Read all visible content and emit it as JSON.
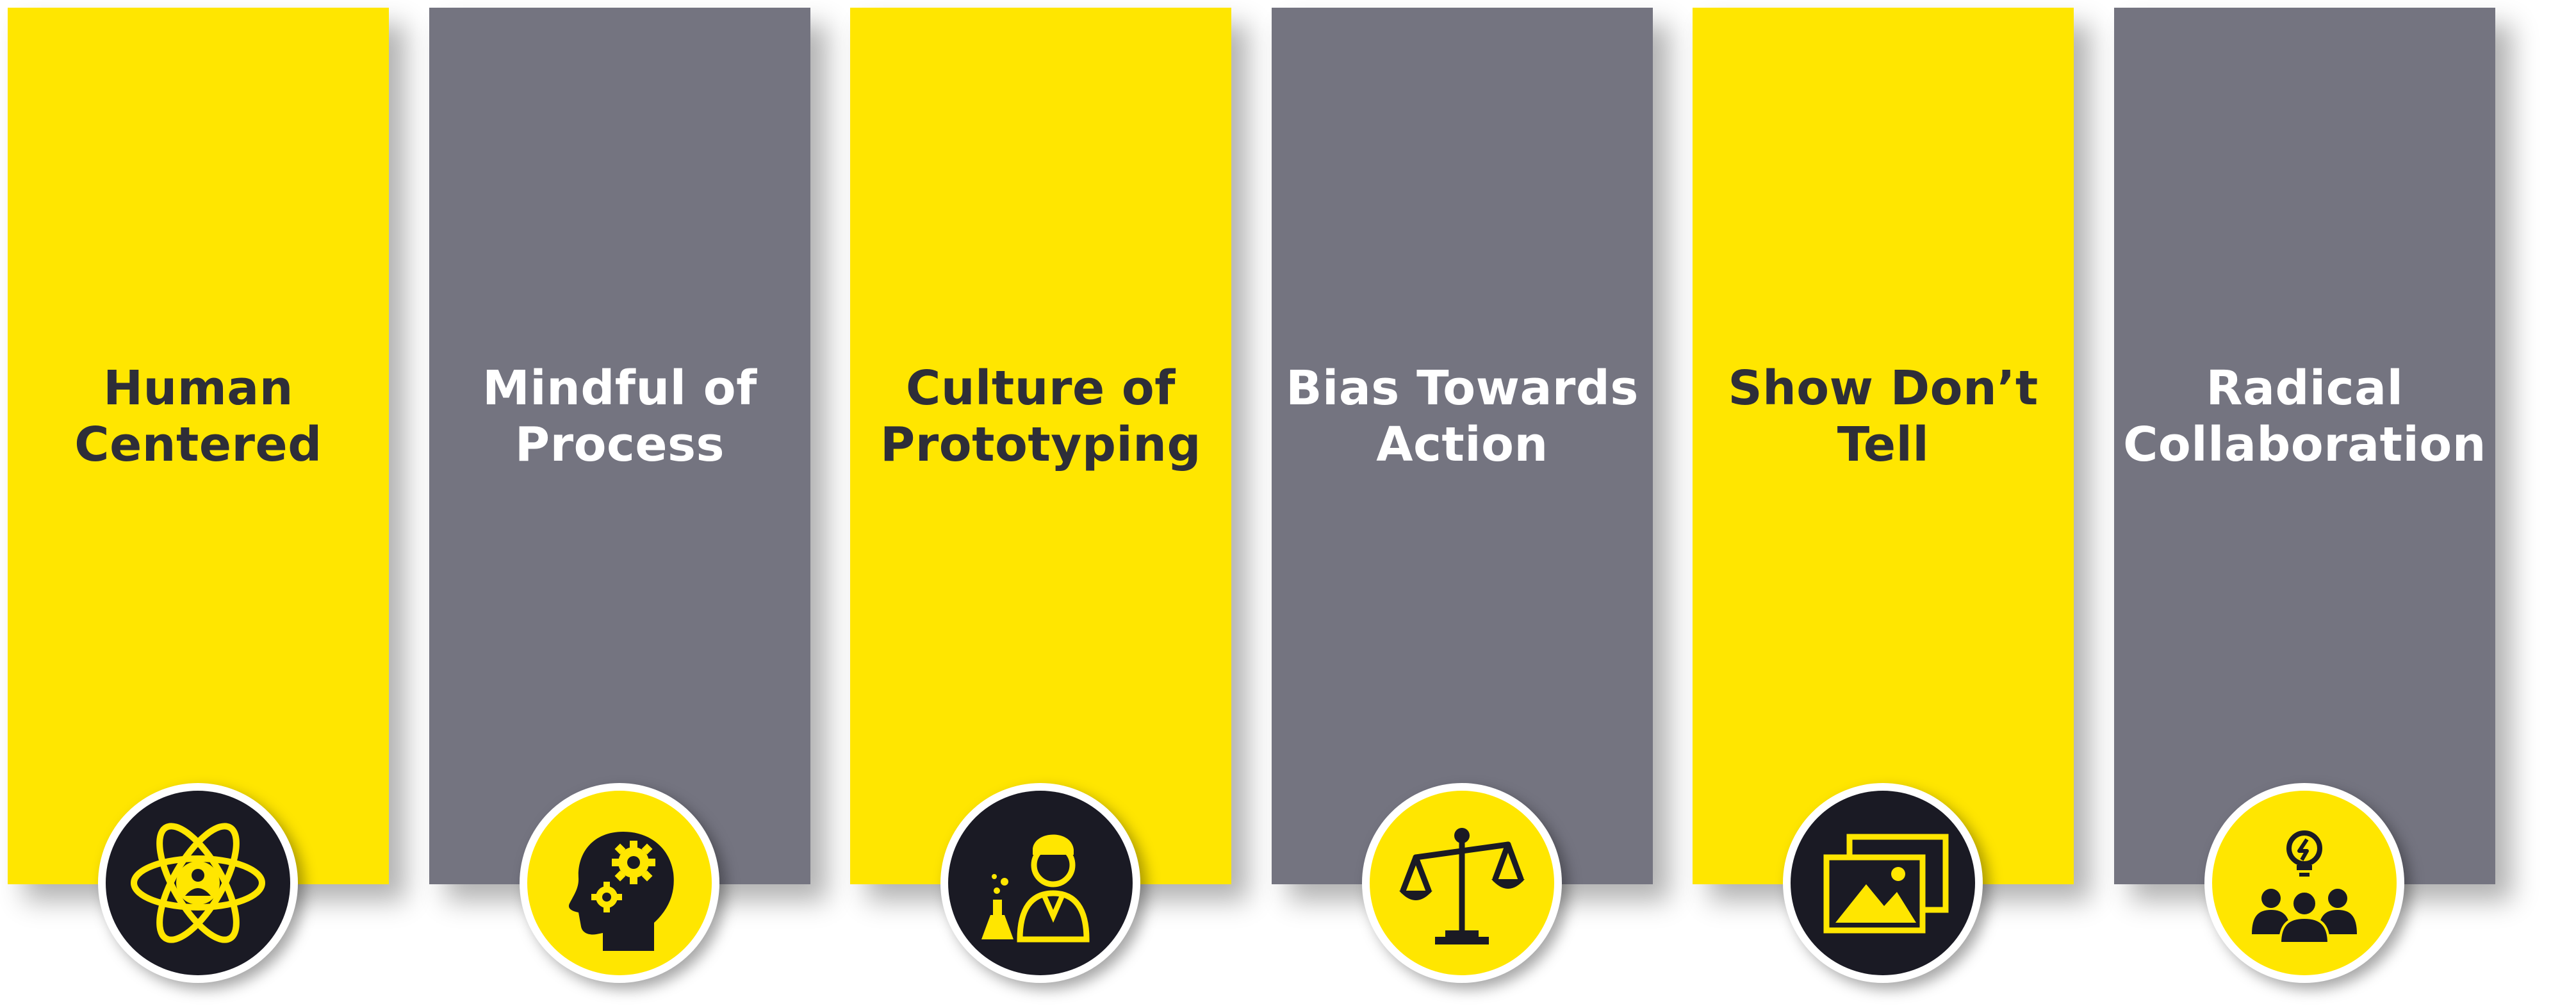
{
  "colors": {
    "yellow": "#FFE600",
    "gray": "#747480",
    "dark_text": "#2E2E38",
    "light_text": "#FFFFFF",
    "badge_dark": "#1A1A24"
  },
  "pillars": [
    {
      "title": "Human\nCentered",
      "color": "yellow",
      "badge": "dark",
      "icon": "atom-person-icon"
    },
    {
      "title": "Mindful of\nProcess",
      "color": "gray",
      "badge": "yellow",
      "icon": "head-gears-icon"
    },
    {
      "title": "Culture of\nPrototyping",
      "color": "yellow",
      "badge": "dark",
      "icon": "scientist-flask-icon"
    },
    {
      "title": "Bias Towards\nAction",
      "color": "gray",
      "badge": "yellow",
      "icon": "balance-scale-icon"
    },
    {
      "title": "Show Don’t\nTell",
      "color": "yellow",
      "badge": "dark",
      "icon": "image-gallery-icon"
    },
    {
      "title": "Radical\nCollaboration",
      "color": "gray",
      "badge": "yellow",
      "icon": "team-idea-icon"
    }
  ]
}
